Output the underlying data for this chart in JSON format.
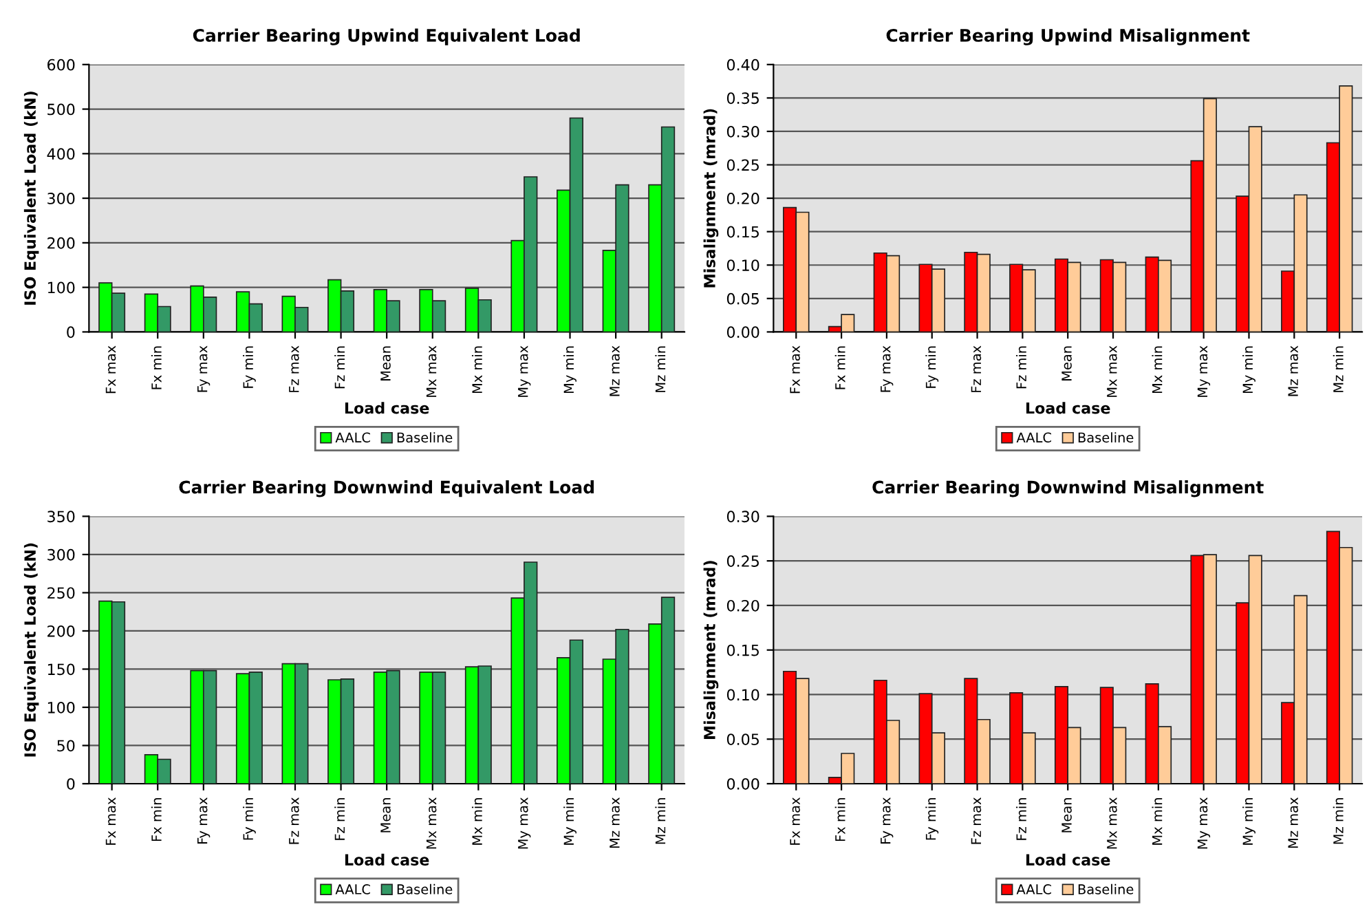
{
  "chart_data": [
    {
      "type": "bar",
      "title": "Carrier Bearing Upwind Equivalent Load",
      "xlabel": "Load case",
      "ylabel": "ISO Equivalent Load (kN)",
      "categories": [
        "Fx max",
        "Fx min",
        "Fy max",
        "Fy min",
        "Fz max",
        "Fz min",
        "Mean",
        "Mx max",
        "Mx min",
        "My max",
        "My min",
        "Mz max",
        "Mz min"
      ],
      "series": [
        {
          "name": "AALC",
          "color": "#00ff00",
          "values": [
            110,
            85,
            103,
            90,
            80,
            117,
            95,
            95,
            98,
            205,
            318,
            183,
            330
          ]
        },
        {
          "name": "Baseline",
          "color": "#339966",
          "values": [
            87,
            57,
            78,
            63,
            55,
            92,
            70,
            70,
            72,
            348,
            480,
            330,
            460
          ]
        }
      ],
      "ylim": [
        0,
        600
      ],
      "yticks": [
        0,
        100,
        200,
        300,
        400,
        500,
        600
      ],
      "grid": "y",
      "legend": "bottom"
    },
    {
      "type": "bar",
      "title": "Carrier Bearing Upwind Misalignment",
      "xlabel": "Load case",
      "ylabel": "Misalignment (mrad)",
      "categories": [
        "Fx max",
        "Fx min",
        "Fy max",
        "Fy min",
        "Fz max",
        "Fz min",
        "Mean",
        "Mx max",
        "Mx min",
        "My max",
        "My min",
        "Mz max",
        "Mz min"
      ],
      "series": [
        {
          "name": "AALC",
          "color": "#ff0000",
          "values": [
            0.186,
            0.008,
            0.118,
            0.101,
            0.119,
            0.101,
            0.109,
            0.108,
            0.112,
            0.256,
            0.203,
            0.091,
            0.283
          ]
        },
        {
          "name": "Baseline",
          "color": "#ffcc99",
          "values": [
            0.179,
            0.026,
            0.114,
            0.094,
            0.116,
            0.093,
            0.104,
            0.104,
            0.107,
            0.349,
            0.307,
            0.205,
            0.368
          ]
        }
      ],
      "ylim": [
        0,
        0.4
      ],
      "yticks": [
        {
          "value": 0,
          "label": "0.00"
        },
        {
          "value": 0.05,
          "label": "0.05"
        },
        {
          "value": 0.1,
          "label": "0.10"
        },
        {
          "value": 0.15,
          "label": "0.15"
        },
        {
          "value": 0.2,
          "label": "0.20"
        },
        {
          "value": 0.25,
          "label": "0.25"
        },
        {
          "value": 0.3,
          "label": "0.30"
        },
        {
          "value": 0.35,
          "label": "0.35"
        },
        {
          "value": 0.4,
          "label": "0.40"
        }
      ],
      "grid": "y",
      "legend": "bottom"
    },
    {
      "type": "bar",
      "title": "Carrier Bearing Downwind Equivalent Load",
      "xlabel": "Load case",
      "ylabel": "ISO Equivalent Load (kN)",
      "categories": [
        "Fx max",
        "Fx min",
        "Fy max",
        "Fy min",
        "Fz max",
        "Fz min",
        "Mean",
        "Mx max",
        "Mx min",
        "My max",
        "My min",
        "Mz max",
        "Mz min"
      ],
      "series": [
        {
          "name": "AALC",
          "color": "#00ff00",
          "values": [
            239,
            38,
            148,
            144,
            157,
            136,
            146,
            146,
            153,
            243,
            165,
            163,
            209
          ]
        },
        {
          "name": "Baseline",
          "color": "#339966",
          "values": [
            238,
            32,
            148,
            146,
            157,
            137,
            148,
            146,
            154,
            290,
            188,
            202,
            244
          ]
        }
      ],
      "ylim": [
        0,
        350
      ],
      "yticks": [
        0,
        50,
        100,
        150,
        200,
        250,
        300,
        350
      ],
      "grid": "y",
      "legend": "bottom"
    },
    {
      "type": "bar",
      "title": "Carrier Bearing Downwind Misalignment",
      "xlabel": "Load case",
      "ylabel": "Misalignment (mrad)",
      "categories": [
        "Fx max",
        "Fx min",
        "Fy max",
        "Fy min",
        "Fz max",
        "Fz min",
        "Mean",
        "Mx max",
        "Mx min",
        "My max",
        "My min",
        "Mz max",
        "Mz min"
      ],
      "series": [
        {
          "name": "AALC",
          "color": "#ff0000",
          "values": [
            0.126,
            0.007,
            0.116,
            0.101,
            0.118,
            0.102,
            0.109,
            0.108,
            0.112,
            0.256,
            0.203,
            0.091,
            0.283
          ]
        },
        {
          "name": "Baseline",
          "color": "#ffcc99",
          "values": [
            0.118,
            0.034,
            0.071,
            0.057,
            0.072,
            0.057,
            0.063,
            0.063,
            0.064,
            0.257,
            0.256,
            0.211,
            0.265
          ]
        }
      ],
      "ylim": [
        0,
        0.3
      ],
      "yticks": [
        {
          "value": 0,
          "label": "0.00"
        },
        {
          "value": 0.05,
          "label": "0.05"
        },
        {
          "value": 0.1,
          "label": "0.10"
        },
        {
          "value": 0.15,
          "label": "0.15"
        },
        {
          "value": 0.2,
          "label": "0.20"
        },
        {
          "value": 0.25,
          "label": "0.25"
        },
        {
          "value": 0.3,
          "label": "0.30"
        }
      ],
      "grid": "y",
      "legend": "bottom"
    }
  ]
}
